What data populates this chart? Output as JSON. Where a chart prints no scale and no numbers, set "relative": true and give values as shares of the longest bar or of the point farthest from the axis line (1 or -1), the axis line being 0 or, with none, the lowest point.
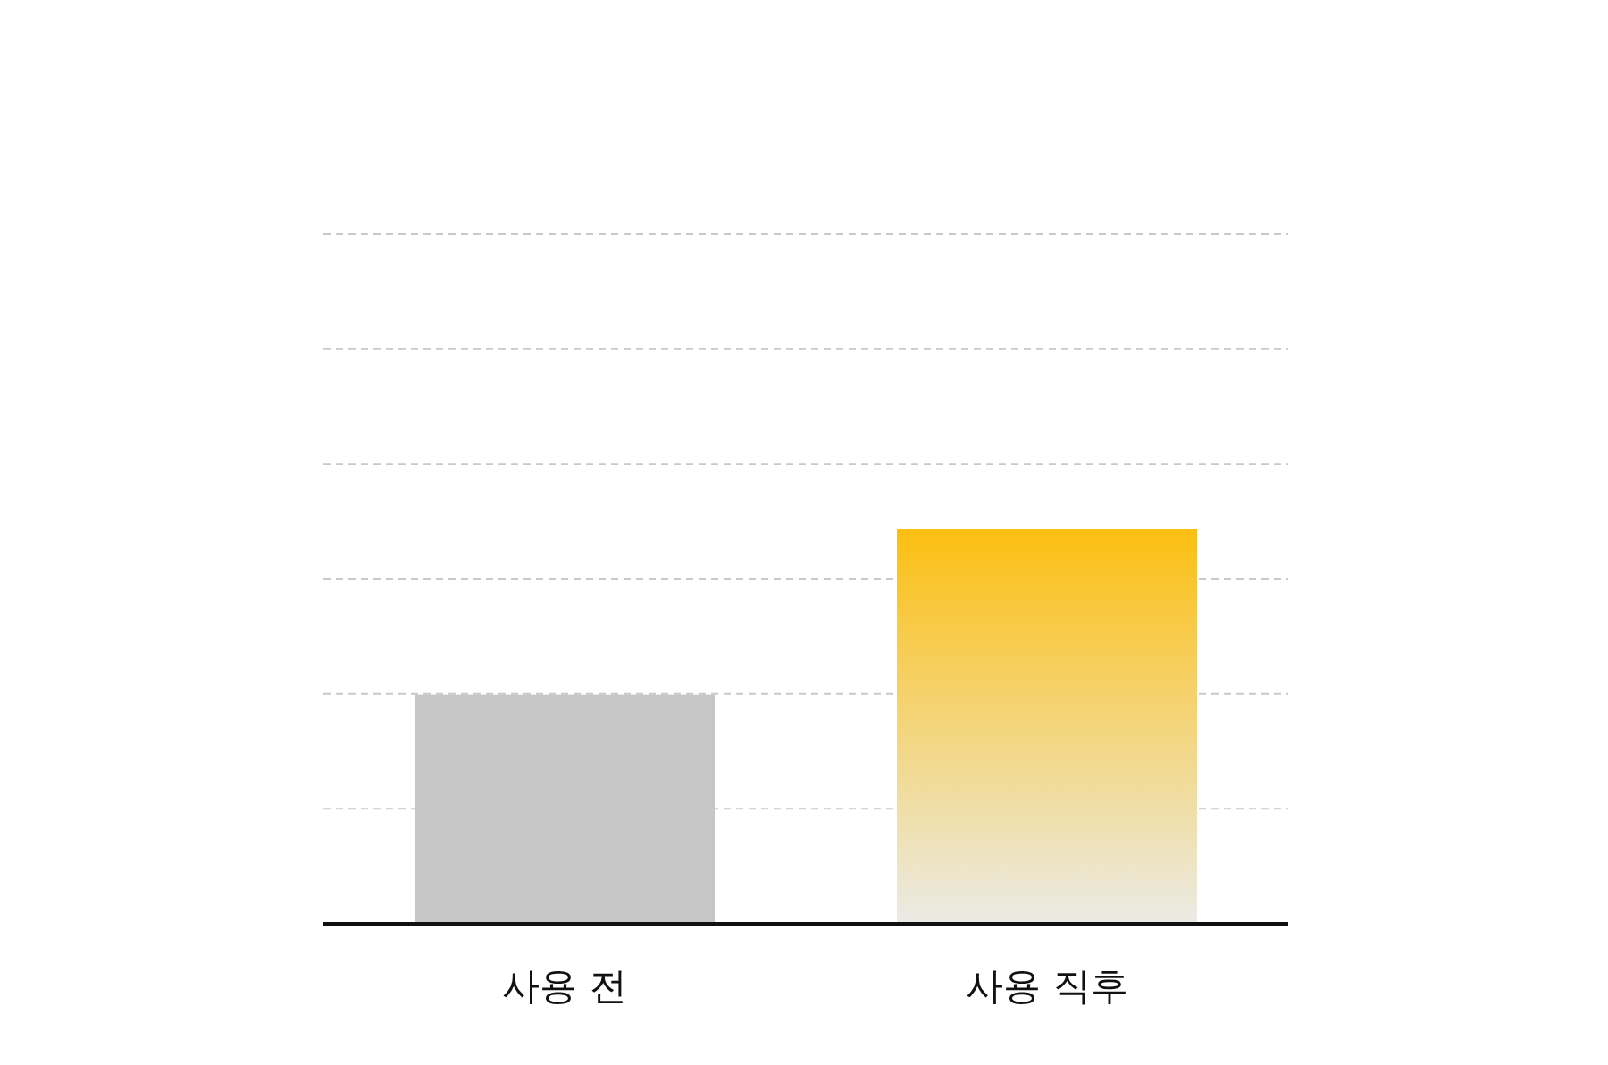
{
  "chart_data": {
    "type": "bar",
    "relative": true,
    "grid": "y",
    "categories": [
      "사용 전",
      "사용 직후"
    ],
    "values": [
      0.58,
      1
    ],
    "colors": [
      "#c6c6c6",
      "#fcbf12"
    ]
  }
}
